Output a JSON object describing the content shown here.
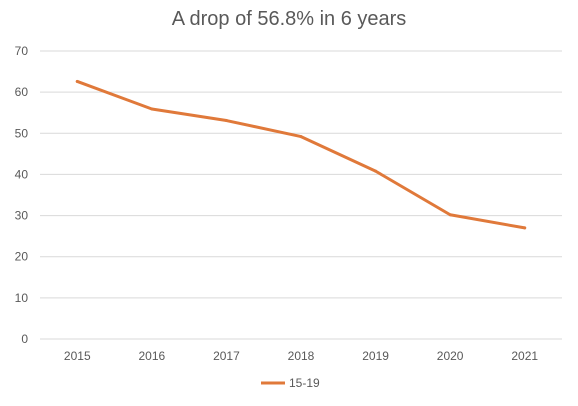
{
  "chart_data": {
    "type": "line",
    "title": "A drop of 56.8% in 6 years",
    "x": [
      "2015",
      "2016",
      "2017",
      "2018",
      "2019",
      "2020",
      "2021"
    ],
    "series": [
      {
        "name": "15-19",
        "values": [
          62.6,
          55.9,
          53.1,
          49.2,
          40.8,
          30.2,
          27.0
        ],
        "color": "#E0793A"
      }
    ],
    "ylim": [
      0,
      70
    ],
    "yticks": [
      0,
      10,
      20,
      30,
      40,
      50,
      60,
      70
    ],
    "grid": true,
    "legend": "bottom"
  }
}
